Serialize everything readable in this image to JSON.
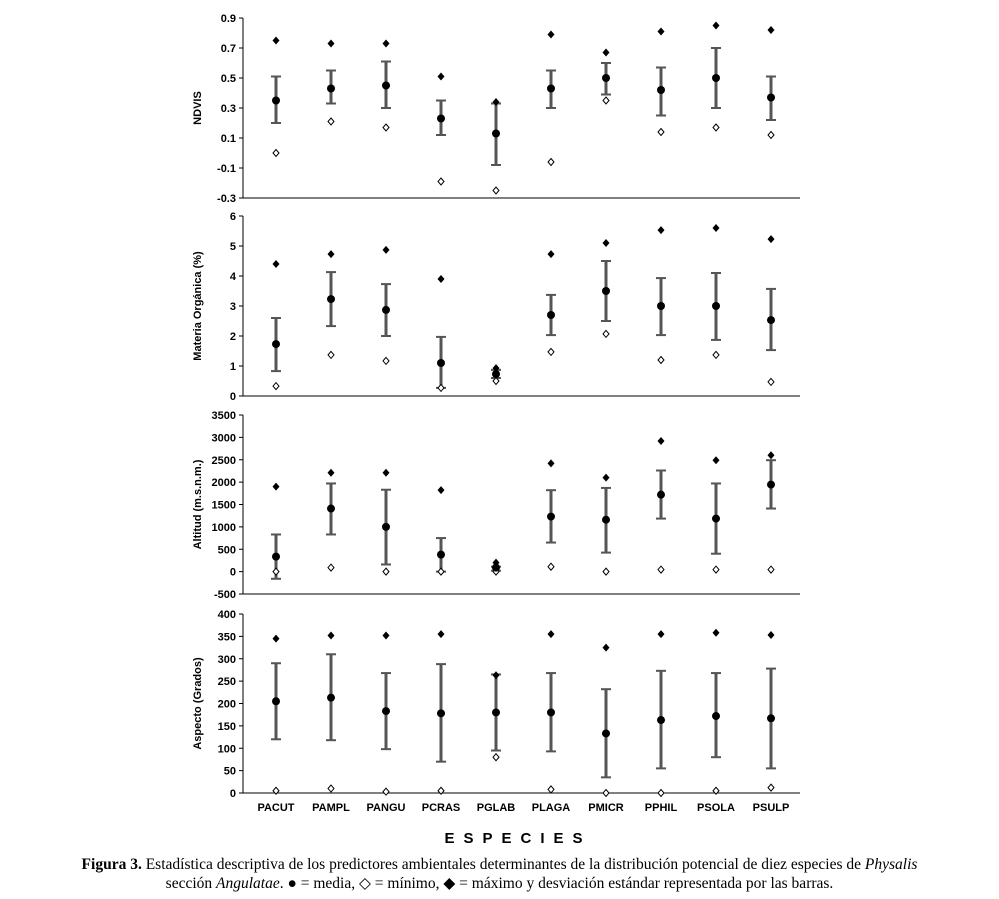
{
  "chart_data": [
    {
      "type": "scatter",
      "ylabel": "NDVIS",
      "ylim": [
        -0.3,
        0.9
      ],
      "yticks": [
        -0.3,
        -0.1,
        0.1,
        0.3,
        0.5,
        0.7,
        0.9
      ],
      "categories": [
        "PACUT",
        "PAMPL",
        "PANGU",
        "PCRAS",
        "PGLAB",
        "PLAGA",
        "PMICR",
        "PPHIL",
        "PSOLA",
        "PSULP"
      ],
      "series": [
        {
          "name": "media",
          "values": [
            0.35,
            0.43,
            0.45,
            0.23,
            0.13,
            0.43,
            0.5,
            0.42,
            0.5,
            0.37
          ]
        },
        {
          "name": "mínimo",
          "values": [
            0.0,
            0.21,
            0.17,
            -0.19,
            -0.25,
            -0.06,
            0.35,
            0.14,
            0.17,
            0.12
          ]
        },
        {
          "name": "máximo",
          "values": [
            0.75,
            0.73,
            0.73,
            0.51,
            0.34,
            0.79,
            0.67,
            0.81,
            0.85,
            0.82
          ]
        },
        {
          "name": "desviación estándar (inferior)",
          "values": [
            0.2,
            0.33,
            0.3,
            0.12,
            -0.08,
            0.3,
            0.39,
            0.25,
            0.3,
            0.22
          ]
        },
        {
          "name": "desviación estándar (superior)",
          "values": [
            0.51,
            0.55,
            0.61,
            0.35,
            0.33,
            0.55,
            0.6,
            0.57,
            0.7,
            0.51
          ]
        }
      ]
    },
    {
      "type": "scatter",
      "ylabel": "Materia Orgánica (%)",
      "ylim": [
        0,
        6
      ],
      "yticks": [
        0,
        1,
        2,
        3,
        4,
        5,
        6
      ],
      "categories": [
        "PACUT",
        "PAMPL",
        "PANGU",
        "PCRAS",
        "PGLAB",
        "PLAGA",
        "PMICR",
        "PPHIL",
        "PSOLA",
        "PSULP"
      ],
      "series": [
        {
          "name": "media",
          "values": [
            1.73,
            3.23,
            2.87,
            1.1,
            0.73,
            2.7,
            3.5,
            3.0,
            3.0,
            2.53
          ]
        },
        {
          "name": "mínimo",
          "values": [
            0.33,
            1.37,
            1.17,
            0.27,
            0.5,
            1.47,
            2.07,
            1.2,
            1.37,
            0.47
          ]
        },
        {
          "name": "máximo",
          "values": [
            4.4,
            4.73,
            4.87,
            3.9,
            0.93,
            4.73,
            5.1,
            5.53,
            5.6,
            5.23
          ]
        },
        {
          "name": "desviación estándar (inferior)",
          "values": [
            0.83,
            2.33,
            2.0,
            0.27,
            0.6,
            2.03,
            2.5,
            2.03,
            1.87,
            1.53
          ]
        },
        {
          "name": "desviación estándar (superior)",
          "values": [
            2.6,
            4.13,
            3.73,
            1.97,
            0.87,
            3.37,
            4.5,
            3.93,
            4.1,
            3.57
          ]
        }
      ]
    },
    {
      "type": "scatter",
      "ylabel": "Altitud (m.s.n.m.)",
      "ylim": [
        -500,
        3500
      ],
      "yticks": [
        -500,
        0,
        500,
        1000,
        1500,
        2000,
        2500,
        3000,
        3500
      ],
      "categories": [
        "PACUT",
        "PAMPL",
        "PANGU",
        "PCRAS",
        "PGLAB",
        "PLAGA",
        "PMICR",
        "PPHIL",
        "PSOLA",
        "PSULP"
      ],
      "series": [
        {
          "name": "media",
          "values": [
            335,
            1410,
            1000,
            380,
            90,
            1230,
            1160,
            1720,
            1185,
            1945
          ]
        },
        {
          "name": "mínimo",
          "values": [
            0,
            90,
            0,
            0,
            0,
            110,
            0,
            45,
            45,
            45
          ]
        },
        {
          "name": "máximo",
          "values": [
            1900,
            2210,
            2210,
            1820,
            200,
            2420,
            2100,
            2920,
            2490,
            2600
          ]
        },
        {
          "name": "desviación estándar (inferior)",
          "values": [
            -160,
            830,
            160,
            0,
            20,
            650,
            425,
            1185,
            400,
            1410
          ]
        },
        {
          "name": "desviación estándar (superior)",
          "values": [
            830,
            1970,
            1830,
            750,
            110,
            1820,
            1870,
            2260,
            1970,
            2490
          ]
        }
      ]
    },
    {
      "type": "scatter",
      "ylabel": "Aspecto (Grados)",
      "ylim": [
        0,
        400
      ],
      "yticks": [
        0,
        50,
        100,
        150,
        200,
        250,
        300,
        350,
        400
      ],
      "categories": [
        "PACUT",
        "PAMPL",
        "PANGU",
        "PCRAS",
        "PGLAB",
        "PLAGA",
        "PMICR",
        "PPHIL",
        "PSOLA",
        "PSULP"
      ],
      "series": [
        {
          "name": "media",
          "values": [
            205,
            213,
            183,
            178,
            180,
            180,
            133,
            163,
            172,
            167
          ]
        },
        {
          "name": "mínimo",
          "values": [
            5,
            10,
            3,
            5,
            80,
            8,
            0,
            0,
            5,
            12
          ]
        },
        {
          "name": "máximo",
          "values": [
            345,
            352,
            352,
            355,
            263,
            355,
            325,
            355,
            358,
            353
          ]
        },
        {
          "name": "desviación estándar (inferior)",
          "values": [
            120,
            118,
            98,
            70,
            95,
            93,
            35,
            55,
            80,
            55
          ]
        },
        {
          "name": "desviación estándar (superior)",
          "values": [
            290,
            310,
            268,
            288,
            265,
            268,
            232,
            273,
            268,
            278
          ]
        }
      ]
    }
  ],
  "xlabel": "ESPECIES",
  "caption": {
    "bold": "Figura 3.",
    "text1": " Estadística descriptiva de los predictores ambientales determinantes de la distribución potencial de diez especies de ",
    "italic1": "Physalis",
    "text2": "sección ",
    "italic2": "Angulatae",
    "text3": ". ● = media, ◇ = mínimo, ◆ = máximo y desviación estándar representada por las barras."
  },
  "colors": {
    "marker": "#000000",
    "errorbar": "#555555"
  }
}
